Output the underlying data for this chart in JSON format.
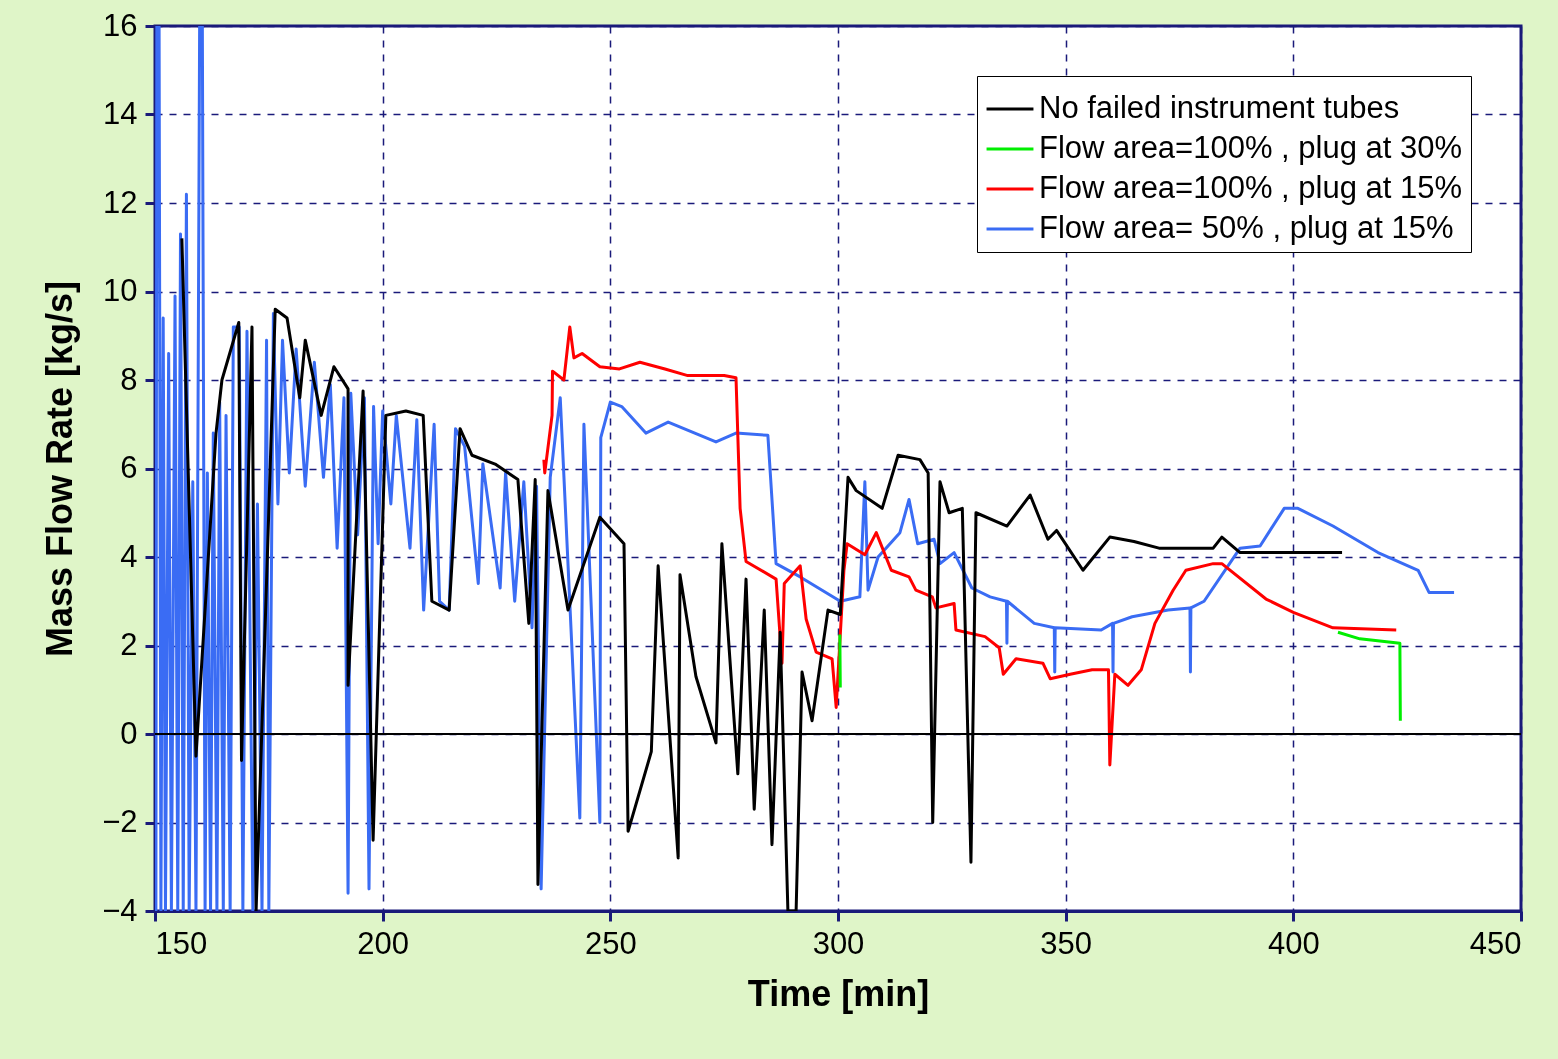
{
  "chart_data": {
    "type": "line",
    "xlabel": "Time [min]",
    "ylabel": "Mass Flow Rate [kg/s]",
    "xlim": [
      150,
      450
    ],
    "ylim": [
      -4,
      16
    ],
    "xticks": [
      150,
      200,
      250,
      300,
      350,
      400,
      450
    ],
    "yticks": [
      -4,
      -2,
      0,
      2,
      4,
      6,
      8,
      10,
      12,
      14,
      16
    ],
    "grid": true,
    "legend": "top right",
    "ref_lines": [
      {
        "axis": "y",
        "value": 0,
        "color": "#000000"
      }
    ],
    "series": [
      {
        "name": "No failed instrument tubes",
        "color": "#000000",
        "x": [
          155.9,
          159,
          163.4,
          164.7,
          168.4,
          169,
          171.3,
          172.2,
          176.4,
          179,
          181.8,
          183,
          186.5,
          189.3,
          192.4,
          192.4,
          195.7,
          197.9,
          200.7,
          205.1,
          208.9,
          210.8,
          214.6,
          217,
          219.6,
          224.7,
          229.7,
          232.1,
          233.5,
          234.1,
          236.3,
          240.7,
          247.7,
          253,
          253.9,
          259,
          260.5,
          264.9,
          265.3,
          268.8,
          273.2,
          274.5,
          278,
          279.8,
          281.6,
          283.8,
          285.5,
          287.3,
          289,
          290.8,
          292.1,
          294.3,
          297.8,
          300.5,
          302.2,
          304,
          309.7,
          313.2,
          318,
          319.8,
          320.8,
          322.4,
          324.4,
          327.3,
          329.2,
          330.3,
          337.1,
          342.2,
          346.1,
          348,
          353.8,
          359.7,
          365,
          370.5,
          382.4,
          384.3,
          388.3,
          410.7
        ],
        "values": [
          11.2,
          -0.5,
          6.8,
          8.0,
          9.3,
          -0.6,
          9.2,
          -4,
          9.6,
          9.4,
          7.6,
          8.9,
          7.2,
          8.3,
          7.8,
          1.1,
          7.75,
          -2.4,
          7.2,
          7.3,
          7.2,
          3.0,
          2.8,
          6.9,
          6.3,
          6.1,
          5.75,
          2.5,
          5.75,
          -3.4,
          5.5,
          2.8,
          4.9,
          4.3,
          -2.2,
          -0.4,
          3.8,
          -2.8,
          3.6,
          1.3,
          -0.2,
          4.3,
          -0.9,
          3.5,
          -1.7,
          2.8,
          -2.5,
          2.3,
          -4,
          -4,
          1.4,
          0.3,
          2.8,
          2.7,
          5.8,
          5.5,
          5.1,
          6.3,
          6.2,
          5.9,
          -2.0,
          5.7,
          5.0,
          5.1,
          -2.9,
          5.0,
          4.7,
          5.4,
          4.4,
          4.6,
          3.7,
          4.45,
          4.35,
          4.2,
          4.2,
          4.45,
          4.1,
          4.1
        ]
      },
      {
        "name": "Flow area=100% , plug at 30%",
        "color": "#00ee00",
        "x": [
          300.4,
          300.5,
          300.6,
          409.8,
          414.6,
          423.4,
          423.5
        ],
        "values": [
          2.25,
          1.05,
          null,
          2.3,
          2.15,
          2.05,
          0.3
        ]
      },
      {
        "name": "Flow area=100% , plug at 15%",
        "color": "#ff0000",
        "x": [
          235.4,
          235.6,
          237.2,
          237.3,
          239.8,
          241.1,
          242,
          243.8,
          247.7,
          252,
          256.5,
          262,
          267,
          275,
          277.6,
          278.5,
          279.8,
          286.4,
          287.7,
          288.2,
          291.7,
          293,
          295.2,
          298.7,
          299.6,
          301.3,
          302,
          305.9,
          308.4,
          311.7,
          315.6,
          317.1,
          320.7,
          321.5,
          325.5,
          325.9,
          332.3,
          335.4,
          336.3,
          339.1,
          345,
          346.6,
          351,
          355.8,
          359.4,
          359.7,
          360.8,
          363.7,
          366.6,
          369.6,
          373.6,
          376.4,
          382.4,
          384.3,
          394,
          400,
          408.7,
          422.6
        ],
        "values": [
          6.2,
          5.9,
          7.2,
          8.2,
          8.0,
          9.2,
          8.5,
          8.6,
          8.3,
          8.25,
          8.4,
          8.25,
          8.1,
          8.1,
          8.05,
          5.1,
          3.9,
          3.5,
          1.6,
          3.4,
          3.8,
          2.6,
          1.85,
          1.7,
          0.6,
          3.7,
          4.3,
          4.05,
          4.55,
          3.7,
          3.55,
          3.25,
          3.1,
          2.85,
          2.95,
          2.35,
          2.2,
          1.95,
          1.35,
          1.7,
          1.6,
          1.25,
          1.35,
          1.45,
          1.45,
          -0.7,
          1.35,
          1.1,
          1.45,
          2.5,
          3.25,
          3.7,
          3.85,
          3.85,
          3.05,
          2.75,
          2.4,
          2.35
        ]
      },
      {
        "name": "Flow area=  50% , plug at 15%",
        "color": "#3a6cf4",
        "x": [
          150.2,
          150.4,
          150.9,
          151.3,
          151.8,
          152.3,
          153,
          153.6,
          154.4,
          155,
          155.6,
          156.2,
          156.9,
          157.5,
          158.3,
          159,
          159.8,
          160.4,
          161,
          161.5,
          162.2,
          162.8,
          163.6,
          164.2,
          165,
          165.6,
          166.5,
          167.2,
          168.5,
          169.3,
          170.2,
          171.5,
          172.5,
          173.5,
          174.5,
          175,
          176,
          177,
          178,
          179.5,
          181,
          183,
          185,
          187,
          188.5,
          190,
          191.5,
          192.4,
          193,
          194.5,
          196,
          197,
          198,
          199,
          200,
          201.8,
          203,
          206,
          207.5,
          209,
          211.3,
          212.5,
          214.6,
          216,
          218,
          221,
          222,
          225.8,
          227,
          229,
          231,
          232.8,
          233.8,
          234.8,
          236.8,
          239,
          243.3,
          244.2,
          247.7,
          247.9,
          250,
          252.5,
          257.8,
          262.7,
          273.2,
          277.6,
          284.6,
          286.4,
          291.7,
          300.5,
          304.8,
          305.9,
          306.6,
          308.8,
          313.6,
          315.6,
          317.5,
          321.1,
          322.4,
          325.5,
          329.4,
          333.4,
          337,
          337.1,
          337.2,
          343.1,
          347.5,
          347.6,
          347.7,
          357.8,
          360.3,
          360.4,
          360.5,
          364.6,
          372.5,
          377.3,
          377.4,
          377.5,
          380.4,
          388.3,
          392.7,
          398,
          401,
          408.7,
          418.6,
          427.4,
          429.8,
          435.3
        ],
        "values": [
          -4,
          16,
          16,
          -4,
          9.4,
          -4,
          8.6,
          -4,
          9.9,
          -4,
          11.3,
          -4,
          12.2,
          -4,
          5.7,
          -4,
          16,
          16,
          -4,
          5.9,
          -4,
          6.8,
          -4,
          7.5,
          -4,
          7.2,
          -4,
          9.2,
          9.2,
          -4,
          9.1,
          -4,
          5.2,
          -4,
          8.9,
          -4,
          9.5,
          5.2,
          8.9,
          5.9,
          8.7,
          5.6,
          8.4,
          5.8,
          7.9,
          4.2,
          7.6,
          -3.6,
          7.7,
          4.5,
          7.6,
          -3.5,
          7.4,
          4.3,
          7.3,
          5.2,
          7.2,
          4.2,
          7.1,
          2.8,
          7.0,
          3.0,
          2.8,
          6.9,
          6.5,
          3.4,
          6.1,
          3.3,
          5.9,
          3.0,
          5.7,
          2.4,
          5.6,
          -3.5,
          5.8,
          7.6,
          -1.9,
          7.0,
          -2.0,
          6.7,
          7.5,
          7.4,
          6.8,
          7.05,
          6.6,
          6.8,
          6.75,
          3.85,
          3.55,
          3.0,
          3.1,
          5.7,
          3.25,
          4.0,
          4.55,
          5.3,
          4.3,
          4.4,
          3.85,
          4.1,
          3.3,
          3.1,
          3.0,
          2.05,
          3.0,
          2.5,
          2.4,
          1.4,
          2.4,
          2.35,
          2.5,
          1.4,
          2.5,
          2.65,
          2.8,
          2.85,
          1.4,
          2.85,
          3.0,
          4.2,
          4.25,
          5.1,
          5.1,
          4.7,
          4.1,
          3.7,
          3.2,
          3.2
        ]
      }
    ]
  }
}
